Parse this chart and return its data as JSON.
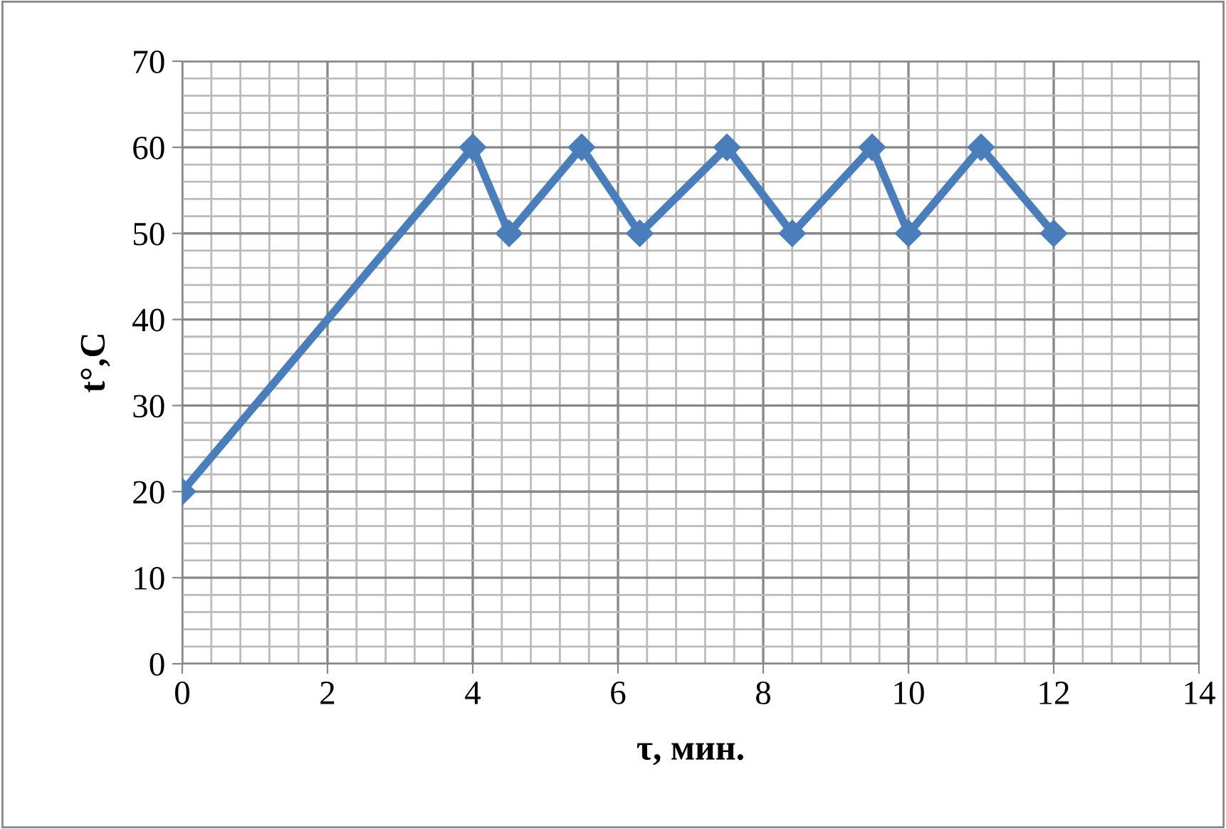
{
  "chart_data": {
    "type": "line",
    "xlabel": "τ, мин.",
    "ylabel": "t°,C",
    "x": [
      0,
      4,
      4.5,
      5.5,
      6.3,
      7.5,
      8.4,
      9.5,
      10,
      11,
      12
    ],
    "series": [
      {
        "color": "#4a7ebb",
        "values": [
          20,
          60,
          50,
          60,
          50,
          60,
          50,
          60,
          50,
          60,
          50
        ]
      }
    ],
    "xlim": [
      0,
      14
    ],
    "xticks": [
      0,
      2,
      4,
      6,
      8,
      10,
      12,
      14
    ],
    "ylim": [
      0,
      70
    ],
    "yticks": [
      0,
      10,
      20,
      30,
      40,
      50,
      60,
      70
    ],
    "grid": true,
    "marker": "diamond",
    "line_style": "solid",
    "legend": false
  }
}
